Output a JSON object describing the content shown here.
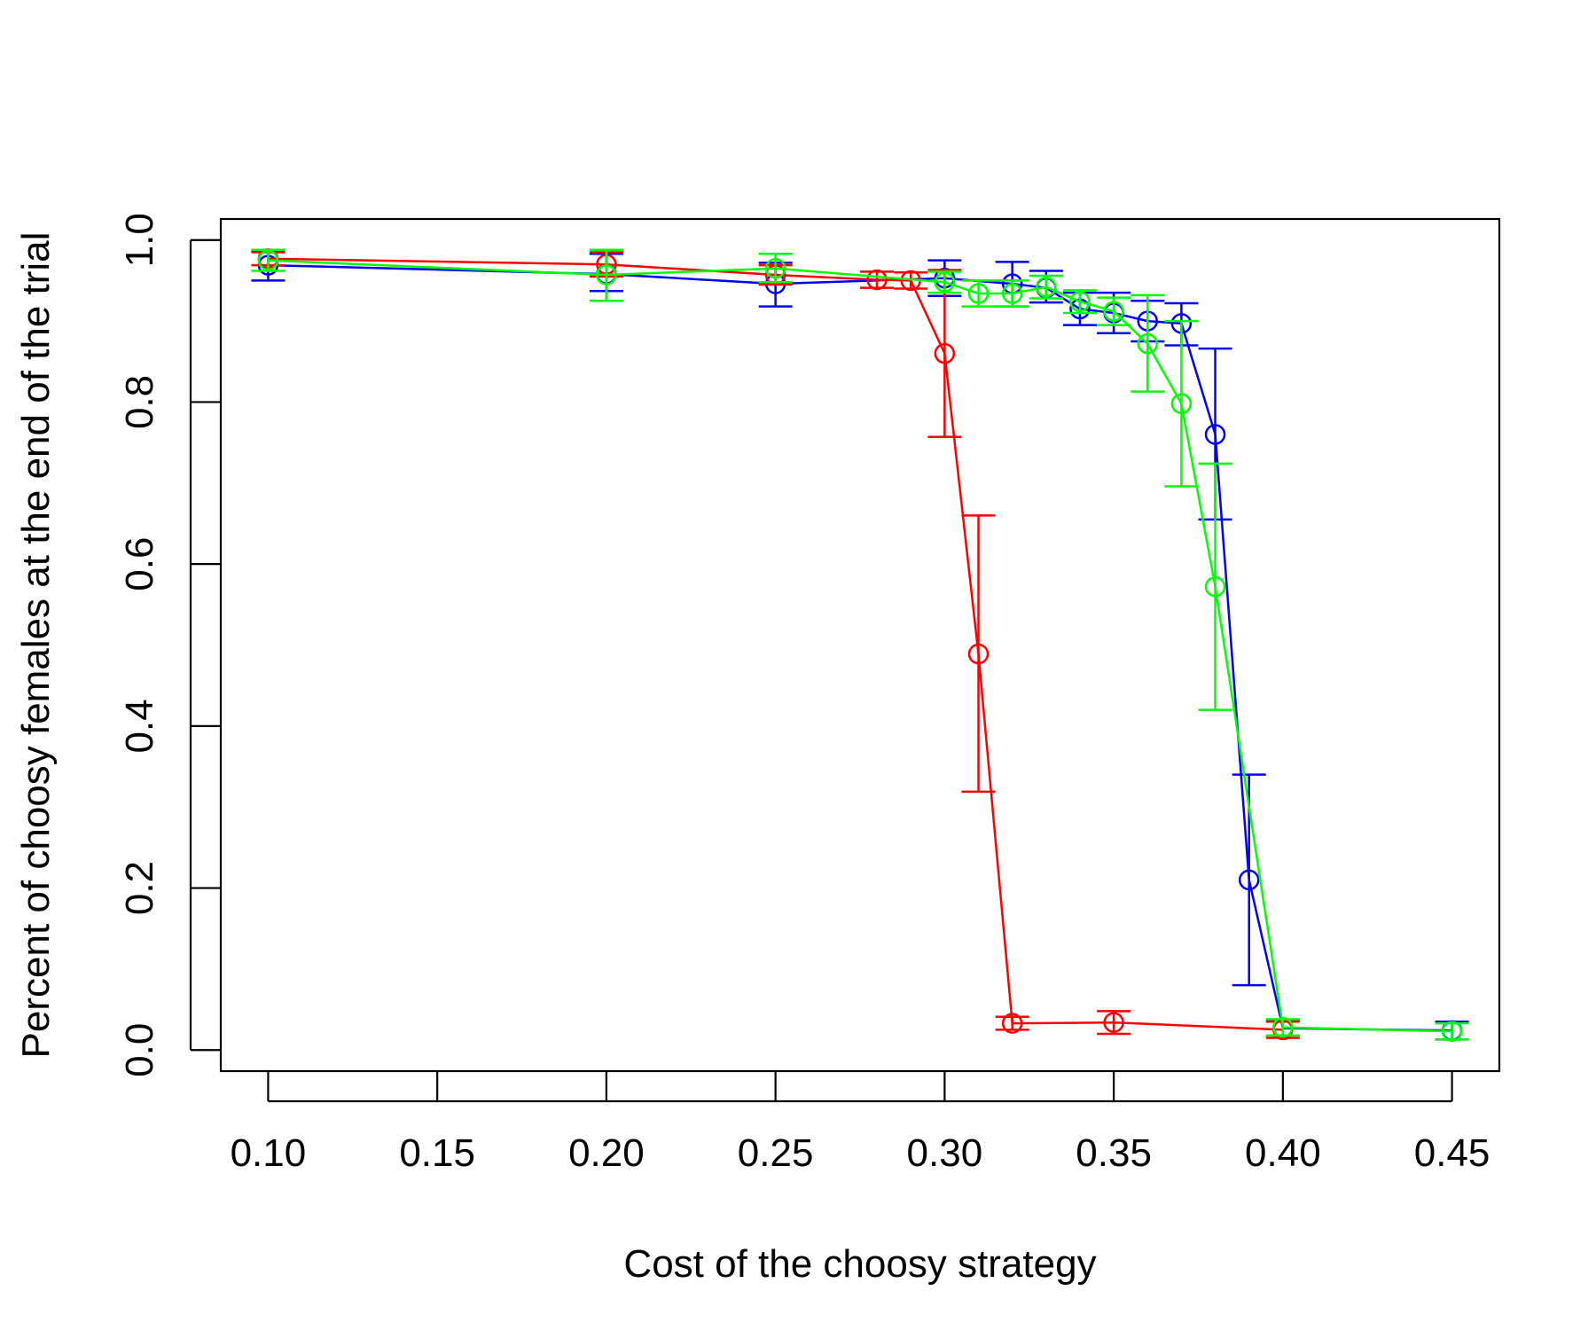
{
  "chart_data": {
    "type": "line",
    "title": "",
    "xlabel": "Cost of the choosy strategy",
    "ylabel": "Percent of choosy females at the end of the trial",
    "xlim": [
      0.086,
      0.464
    ],
    "ylim": [
      -0.026,
      1.026
    ],
    "x_ticks": [
      "0.10",
      "0.15",
      "0.20",
      "0.25",
      "0.30",
      "0.35",
      "0.40",
      "0.45"
    ],
    "y_ticks": [
      "0.0",
      "0.2",
      "0.4",
      "0.6",
      "0.8",
      "1.0"
    ],
    "grid": false,
    "legend": "none",
    "series": [
      {
        "name": "blue",
        "color": "#0000ff",
        "x": [
          0.1,
          0.2,
          0.25,
          0.3,
          0.32,
          0.33,
          0.34,
          0.35,
          0.36,
          0.37,
          0.38,
          0.39,
          0.4,
          0.45
        ],
        "y": [
          0.969,
          0.958,
          0.946,
          0.953,
          0.946,
          0.941,
          0.915,
          0.91,
          0.9,
          0.897,
          0.76,
          0.21,
          0.027,
          0.024
        ],
        "lower": [
          0.95,
          0.937,
          0.918,
          0.931,
          0.918,
          0.923,
          0.895,
          0.885,
          0.875,
          0.87,
          0.655,
          0.08,
          0.018,
          0.013
        ],
        "upper": [
          0.987,
          0.983,
          0.972,
          0.975,
          0.973,
          0.962,
          0.935,
          0.935,
          0.925,
          0.922,
          0.866,
          0.34,
          0.036,
          0.035
        ]
      },
      {
        "name": "red",
        "color": "#ff0000",
        "x": [
          0.1,
          0.2,
          0.25,
          0.28,
          0.29,
          0.3,
          0.31,
          0.32,
          0.35,
          0.4
        ],
        "y": [
          0.977,
          0.97,
          0.957,
          0.951,
          0.95,
          0.86,
          0.489,
          0.033,
          0.034,
          0.025
        ],
        "lower": [
          0.969,
          0.955,
          0.945,
          0.941,
          0.94,
          0.757,
          0.319,
          0.025,
          0.02,
          0.015
        ],
        "upper": [
          0.985,
          0.985,
          0.969,
          0.961,
          0.96,
          0.963,
          0.66,
          0.041,
          0.048,
          0.035
        ]
      },
      {
        "name": "green",
        "color": "#00ff00",
        "x": [
          0.1,
          0.2,
          0.25,
          0.3,
          0.31,
          0.32,
          0.33,
          0.34,
          0.35,
          0.36,
          0.37,
          0.38,
          0.4,
          0.45
        ],
        "y": [
          0.975,
          0.957,
          0.965,
          0.948,
          0.934,
          0.934,
          0.942,
          0.924,
          0.912,
          0.872,
          0.798,
          0.572,
          0.028,
          0.023
        ],
        "lower": [
          0.962,
          0.925,
          0.948,
          0.935,
          0.918,
          0.918,
          0.928,
          0.91,
          0.895,
          0.813,
          0.696,
          0.42,
          0.018,
          0.013
        ],
        "upper": [
          0.988,
          0.988,
          0.983,
          0.961,
          0.95,
          0.95,
          0.956,
          0.938,
          0.929,
          0.932,
          0.9,
          0.724,
          0.038,
          0.033
        ]
      }
    ]
  }
}
